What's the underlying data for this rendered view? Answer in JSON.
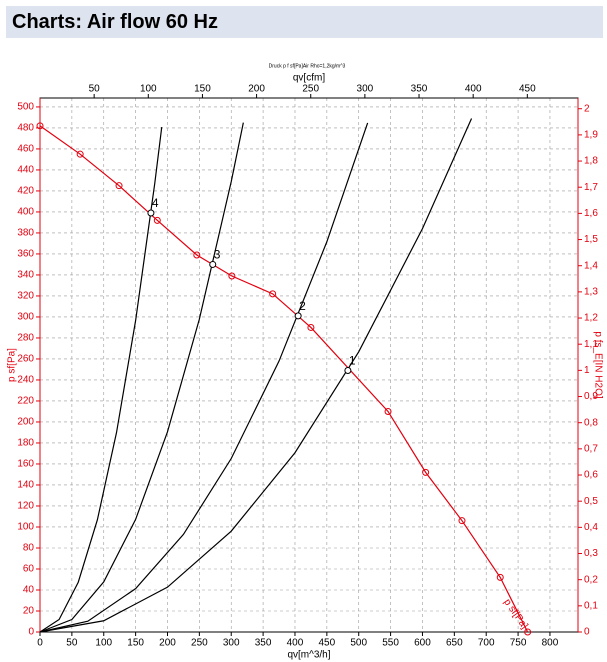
{
  "chart_data": {
    "type": "line",
    "title": "Charts: Air flow 60 Hz",
    "subtitle": "Druck p f sf[Pa]Air Rho=1,2kg/m^3",
    "xlabel": "qv[m^3/h]",
    "x2label": "qv[cfm]",
    "ylabel": "p sf[Pa]",
    "y2label": "p fs_E[IN H2O]",
    "xlim": [
      0,
      844
    ],
    "xticks": [
      0,
      50,
      100,
      150,
      200,
      250,
      300,
      350,
      400,
      450,
      500,
      550,
      600,
      650,
      700,
      750,
      800
    ],
    "x2lim": [
      0,
      496.8
    ],
    "x2ticks": [
      50,
      100,
      150,
      200,
      250,
      300,
      350,
      400,
      450
    ],
    "ylim": [
      0,
      508.5
    ],
    "yticks": [
      0,
      20,
      40,
      60,
      80,
      100,
      120,
      140,
      160,
      180,
      200,
      220,
      240,
      260,
      280,
      300,
      320,
      340,
      360,
      380,
      400,
      420,
      440,
      460,
      480,
      500
    ],
    "y2lim": [
      0,
      2.041
    ],
    "y2ticks": [
      0,
      {
        "value": 0.1,
        "label": "0,1"
      },
      {
        "value": 0.2,
        "label": "0,2"
      },
      {
        "value": 0.3,
        "label": "0,3"
      },
      {
        "value": 0.4,
        "label": "0,4"
      },
      {
        "value": 0.5,
        "label": "0,5"
      },
      {
        "value": 0.6,
        "label": "0,6"
      },
      {
        "value": 0.7,
        "label": "0,7"
      },
      {
        "value": 0.8,
        "label": "0,8"
      },
      {
        "value": 0.9,
        "label": "0,9"
      },
      1,
      {
        "value": 1.1,
        "label": "1,1"
      },
      {
        "value": 1.2,
        "label": "1,2"
      },
      {
        "value": 1.3,
        "label": "1,3"
      },
      {
        "value": 1.4,
        "label": "1,4"
      },
      {
        "value": 1.5,
        "label": "1,5"
      },
      {
        "value": 1.6,
        "label": "1,6"
      },
      {
        "value": 1.7,
        "label": "1,7"
      },
      {
        "value": 1.8,
        "label": "1,8"
      },
      {
        "value": 1.9,
        "label": "1,9"
      },
      2
    ],
    "grid": true,
    "series": [
      {
        "name": "p sf[Pa]",
        "color": "#e3000f",
        "markers": true,
        "x": [
          0,
          63,
          124,
          184,
          246,
          301,
          365,
          425,
          546,
          605,
          662,
          722,
          765
        ],
        "values": [
          482,
          455,
          425,
          392,
          359,
          339,
          322,
          290,
          210,
          152,
          106,
          52,
          0
        ]
      },
      {
        "color": "#000000",
        "x": [
          0,
          100,
          200,
          300,
          400,
          500,
          600,
          677
        ],
        "values": [
          0,
          10.7,
          42.7,
          96.0,
          170.7,
          266.8,
          384.1,
          489.0
        ]
      },
      {
        "color": "#000000",
        "x": [
          0,
          75,
          150,
          225,
          300,
          375,
          450,
          514
        ],
        "values": [
          0,
          10.3,
          41.3,
          92.9,
          165.2,
          258.0,
          371.6,
          484.8
        ]
      },
      {
        "color": "#000000",
        "x": [
          0,
          50,
          100,
          150,
          200,
          250,
          300,
          319
        ],
        "values": [
          0,
          11.9,
          47.7,
          107.2,
          190.6,
          297.9,
          428.9,
          485.0
        ]
      },
      {
        "color": "#000000",
        "x": [
          0,
          30,
          60,
          90,
          120,
          150,
          180,
          191
        ],
        "values": [
          0,
          11.9,
          47.4,
          106.8,
          189.8,
          296.6,
          427.0,
          480.8
        ]
      }
    ],
    "points": {
      "labels": [
        "1",
        "2",
        "3",
        "4"
      ],
      "x": [
        483,
        405,
        271,
        174
      ],
      "values": [
        249,
        301,
        350,
        399
      ]
    }
  }
}
